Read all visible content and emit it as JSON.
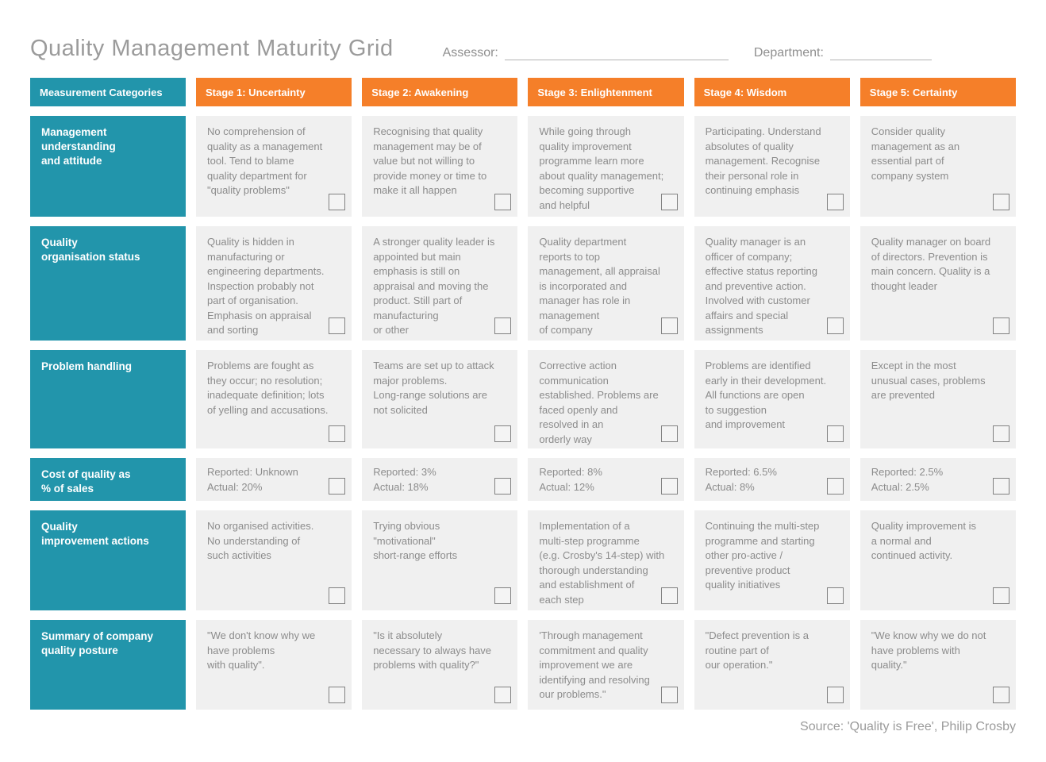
{
  "page": {
    "title": "Quality Management Maturity Grid",
    "assessor_label": "Assessor:",
    "department_label": "Department:",
    "source": "Source: 'Quality is Free', Philip Crosby"
  },
  "colors": {
    "teal": "#2295ab",
    "orange": "#f57f29",
    "cell_background": "#f0f0f0",
    "body_text": "#8c8c8c",
    "title_text": "#9b9b9b"
  },
  "grid": {
    "corner_header": "Measurement Categories",
    "stage_headers": [
      "Stage 1: Uncertainty",
      "Stage 2: Awakening",
      "Stage 3: Enlightenment",
      "Stage 4: Wisdom",
      "Stage 5: Certainty"
    ],
    "rows": [
      {
        "category": "Management\nunderstanding\nand attitude",
        "cells": [
          "No comprehension of\nquality as a management\ntool. Tend to blame\nquality department for\n\"quality problems\"",
          "Recognising that quality\nmanagement may be of\nvalue but not willing to\nprovide money or time to\nmake it all happen",
          "While going through\nquality improvement\nprogramme learn more\nabout quality management;\nbecoming supportive\nand helpful",
          "Participating. Understand\nabsolutes of quality\nmanagement. Recognise\ntheir personal role in\ncontinuing emphasis",
          "Consider quality\nmanagement as an\nessential part of\ncompany system"
        ]
      },
      {
        "category": "Quality\norganisation status",
        "cells": [
          "Quality is hidden in\nmanufacturing or\nengineering departments.\nInspection probably not\npart of organisation.\nEmphasis on appraisal\nand sorting",
          "A stronger quality leader is\nappointed but main\nemphasis is still on\nappraisal and moving the\nproduct. Still part of\nmanufacturing\nor other",
          "Quality department\nreports to top\nmanagement, all appraisal\nis incorporated and\nmanager has role in\nmanagement\nof company",
          "Quality manager is an\nofficer of company;\neffective status reporting\nand preventive action.\nInvolved with customer\naffairs and special\nassignments",
          "Quality manager on board\nof directors. Prevention is\nmain concern. Quality is a\nthought leader"
        ]
      },
      {
        "category": "Problem handling",
        "cells": [
          "Problems are fought as\nthey occur; no resolution;\ninadequate definition; lots\nof yelling and accusations.",
          "Teams are set up to attack\nmajor problems.\nLong-range solutions are\nnot solicited",
          "Corrective action\ncommunication\nestablished. Problems are\nfaced openly and\nresolved in an\norderly way",
          "Problems are identified\nearly in their development.\nAll functions are open\nto suggestion\nand improvement",
          "Except in the most\nunusual cases, problems\nare prevented"
        ]
      },
      {
        "category": "Cost of quality as\n% of sales",
        "cells": [
          "Reported: Unknown\nActual: 20%",
          "Reported: 3%\nActual: 18%",
          "Reported: 8%\nActual: 12%",
          "Reported: 6.5%\nActual: 8%",
          "Reported: 2.5%\nActual: 2.5%"
        ]
      },
      {
        "category": "Quality\nimprovement actions",
        "cells": [
          "No organised activities.\nNo understanding of\nsuch activities",
          "Trying obvious\n\"motivational\"\nshort-range efforts",
          "Implementation of a\nmulti-step programme\n(e.g. Crosby's 14-step) with\nthorough understanding\nand establishment of\neach step",
          "Continuing the multi-step\nprogramme and starting\nother pro-active /\npreventive product\nquality initiatives",
          "Quality improvement is\na normal and\ncontinued activity."
        ]
      },
      {
        "category": "Summary of company\nquality posture",
        "cells": [
          "\"We don't know why we\nhave problems\nwith quality\".",
          "\"Is it absolutely\nnecessary to always have\nproblems with quality?\"",
          "'Through management\ncommitment and quality\nimprovement we are\nidentifying and resolving\nour problems.\"",
          "\"Defect prevention is a\nroutine part of\nour operation.\"",
          "\"We know why we do not\nhave problems with\nquality.\""
        ]
      }
    ]
  }
}
